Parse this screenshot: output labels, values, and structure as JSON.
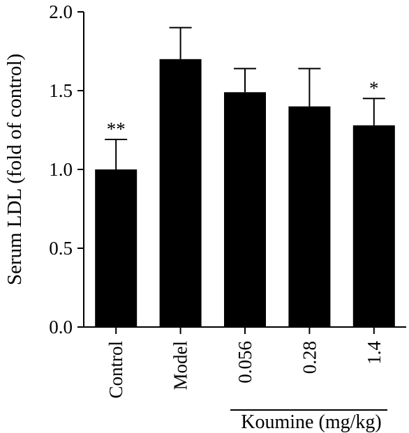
{
  "chart_data": {
    "type": "bar",
    "ylabel": "Serum LDL (fold of control)",
    "categories": [
      "Control",
      "Model",
      "0.056",
      "0.28",
      "1.4"
    ],
    "values": [
      1.0,
      1.7,
      1.49,
      1.4,
      1.28
    ],
    "errors": [
      0.19,
      0.2,
      0.15,
      0.24,
      0.17
    ],
    "significance": [
      "**",
      "",
      "",
      "",
      "*"
    ],
    "ylim": [
      0.0,
      2.0
    ],
    "yticks": [
      "0.0",
      "0.5",
      "1.0",
      "1.5",
      "2.0"
    ],
    "group_label": "Koumine (mg/kg)",
    "grid": false,
    "bar_color": "#000000"
  }
}
